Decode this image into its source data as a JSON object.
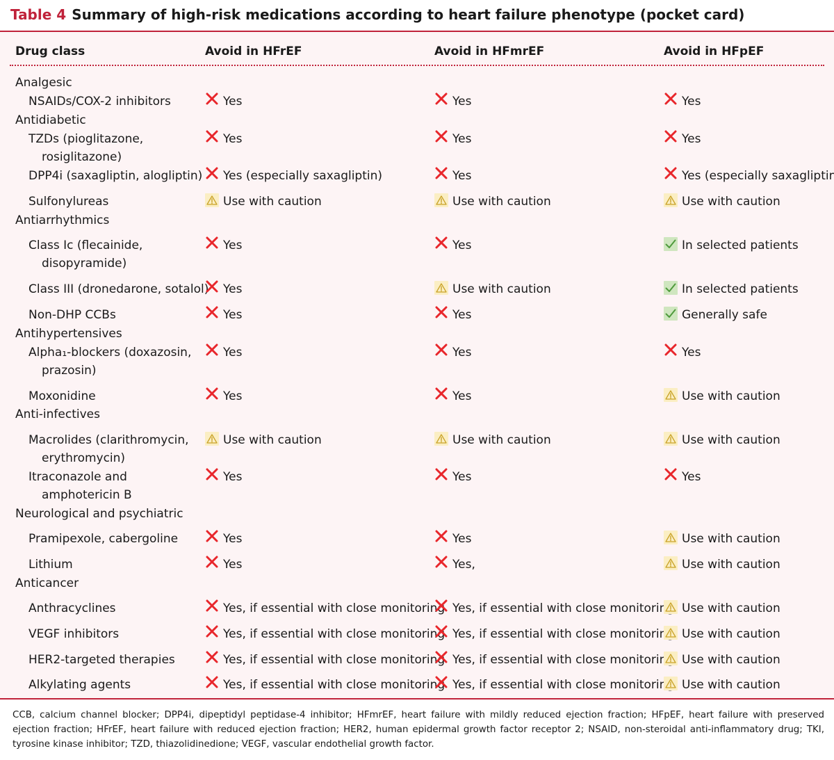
{
  "title": {
    "label": "Table 4",
    "text": "Summary of high-risk medications according to heart failure phenotype (pocket card)"
  },
  "header": {
    "drug_class": "Drug class",
    "hfref": "Avoid in HFrEF",
    "hfmref": "Avoid in HFmrEF",
    "hfpef": "Avoid in HFpEF"
  },
  "rows": [
    {
      "type": "category",
      "label": "Analgesic"
    },
    {
      "type": "drug",
      "lines": [
        "NSAIDs/COX-2 inhibitors"
      ],
      "hfref": {
        "icon": "red-x-icon",
        "text": "Yes"
      },
      "hfmref": {
        "icon": "red-x-icon",
        "text": "Yes"
      },
      "hfpef": {
        "icon": "red-x-icon",
        "text": "Yes"
      }
    },
    {
      "type": "category",
      "label": "Antidiabetic"
    },
    {
      "type": "drug",
      "lines": [
        "TZDs (pioglitazone,",
        "rosiglitazone)"
      ],
      "hfref": {
        "icon": "red-x-icon",
        "text": "Yes"
      },
      "hfmref": {
        "icon": "red-x-icon",
        "text": "Yes"
      },
      "hfpef": {
        "icon": "red-x-icon",
        "text": "Yes"
      }
    },
    {
      "type": "drug",
      "lines": [
        "DPP4i (saxagliptin, alogliptin)"
      ],
      "hfref": {
        "icon": "red-x-icon",
        "text": "Yes (especially saxagliptin)"
      },
      "hfmref": {
        "icon": "red-x-icon",
        "text": "Yes"
      },
      "hfpef": {
        "icon": "red-x-icon",
        "text": "Yes (especially saxagliptin)"
      }
    },
    {
      "type": "drug",
      "lines": [
        "Sulfonylureas"
      ],
      "hfref": {
        "icon": "warning-icon",
        "text": "Use with caution"
      },
      "hfmref": {
        "icon": "warning-icon",
        "text": "Use with caution"
      },
      "hfpef": {
        "icon": "warning-icon",
        "text": "Use with caution"
      }
    },
    {
      "type": "category",
      "label": "Antiarrhythmics"
    },
    {
      "type": "drug",
      "lines": [
        "Class Ic (flecainide,",
        "disopyramide)"
      ],
      "hfref": {
        "icon": "red-x-icon",
        "text": "Yes"
      },
      "hfmref": {
        "icon": "red-x-icon",
        "text": "Yes"
      },
      "hfpef": {
        "icon": "green-check-icon",
        "text": "In selected patients"
      }
    },
    {
      "type": "drug",
      "lines": [
        "Class III (dronedarone, sotalol)"
      ],
      "hfref": {
        "icon": "red-x-icon",
        "text": "Yes"
      },
      "hfmref": {
        "icon": "warning-icon",
        "text": "Use with caution"
      },
      "hfpef": {
        "icon": "green-check-icon",
        "text": "In selected patients"
      }
    },
    {
      "type": "drug",
      "lines": [
        "Non-DHP CCBs"
      ],
      "hfref": {
        "icon": "red-x-icon",
        "text": "Yes"
      },
      "hfmref": {
        "icon": "red-x-icon",
        "text": "Yes"
      },
      "hfpef": {
        "icon": "green-check-icon",
        "text": "Generally safe"
      }
    },
    {
      "type": "category",
      "label": "Antihypertensives"
    },
    {
      "type": "drug",
      "lines": [
        "Alpha₁-blockers (doxazosin,",
        "prazosin)"
      ],
      "hfref": {
        "icon": "red-x-icon",
        "text": "Yes"
      },
      "hfmref": {
        "icon": "red-x-icon",
        "text": "Yes"
      },
      "hfpef": {
        "icon": "red-x-icon",
        "text": "Yes"
      }
    },
    {
      "type": "drug",
      "lines": [
        "Moxonidine"
      ],
      "hfref": {
        "icon": "red-x-icon",
        "text": "Yes"
      },
      "hfmref": {
        "icon": "red-x-icon",
        "text": "Yes"
      },
      "hfpef": {
        "icon": "warning-icon",
        "text": "Use with caution"
      }
    },
    {
      "type": "category",
      "label": "Anti-infectives"
    },
    {
      "type": "drug",
      "lines": [
        "Macrolides (clarithromycin,",
        "erythromycin)"
      ],
      "hfref": {
        "icon": "warning-icon",
        "text": "Use with caution"
      },
      "hfmref": {
        "icon": "warning-icon",
        "text": "Use with caution"
      },
      "hfpef": {
        "icon": "warning-icon",
        "text": "Use with caution"
      }
    },
    {
      "type": "drug",
      "lines": [
        "Itraconazole and",
        "amphotericin B"
      ],
      "hfref": {
        "icon": "red-x-icon",
        "text": "Yes"
      },
      "hfmref": {
        "icon": "red-x-icon",
        "text": "Yes"
      },
      "hfpef": {
        "icon": "red-x-icon",
        "text": "Yes"
      }
    },
    {
      "type": "category",
      "label": "Neurological and psychiatric"
    },
    {
      "type": "drug",
      "lines": [
        "Pramipexole, cabergoline"
      ],
      "hfref": {
        "icon": "red-x-icon",
        "text": "Yes"
      },
      "hfmref": {
        "icon": "red-x-icon",
        "text": "Yes"
      },
      "hfpef": {
        "icon": "warning-icon",
        "text": "Use with caution"
      }
    },
    {
      "type": "drug",
      "lines": [
        "Lithium"
      ],
      "hfref": {
        "icon": "red-x-icon",
        "text": "Yes"
      },
      "hfmref": {
        "icon": "red-x-icon",
        "text": "Yes,"
      },
      "hfpef": {
        "icon": "warning-icon",
        "text": "Use with caution"
      }
    },
    {
      "type": "category",
      "label": "Anticancer"
    },
    {
      "type": "drug",
      "lines": [
        "Anthracyclines"
      ],
      "hfref": {
        "icon": "red-x-icon",
        "text": "Yes, if essential with close monitoring"
      },
      "hfmref": {
        "icon": "red-x-icon",
        "text": "Yes, if essential with close monitoring"
      },
      "hfpef": {
        "icon": "warning-icon",
        "text": "Use with caution"
      }
    },
    {
      "type": "drug",
      "lines": [
        "VEGF inhibitors"
      ],
      "hfref": {
        "icon": "red-x-icon",
        "text": "Yes, if essential with close monitoring"
      },
      "hfmref": {
        "icon": "red-x-icon",
        "text": "Yes, if essential with close monitoring"
      },
      "hfpef": {
        "icon": "warning-icon",
        "text": "Use with caution"
      }
    },
    {
      "type": "drug",
      "lines": [
        "HER2-targeted therapies"
      ],
      "hfref": {
        "icon": "red-x-icon",
        "text": "Yes, if essential with close monitoring"
      },
      "hfmref": {
        "icon": "red-x-icon",
        "text": "Yes, if essential with close monitoring"
      },
      "hfpef": {
        "icon": "warning-icon",
        "text": "Use with caution"
      }
    },
    {
      "type": "drug",
      "lines": [
        "Alkylating agents"
      ],
      "hfref": {
        "icon": "red-x-icon",
        "text": "Yes, if essential with close monitoring"
      },
      "hfmref": {
        "icon": "red-x-icon",
        "text": "Yes, if essential with close monitoring"
      },
      "hfpef": {
        "icon": "warning-icon",
        "text": "Use with caution"
      }
    }
  ],
  "footnote": "CCB, calcium channel blocker; DPP4i, dipeptidyl peptidase-4 inhibitor; HFmrEF, heart failure with mildly reduced ejection fraction; HFpEF, heart failure with preserved ejection fraction; HFrEF, heart failure with reduced ejection fraction; HER2, human epidermal growth factor receptor 2; NSAID, non-steroidal anti-inflammatory drug; TKI, tyrosine kinase inhibitor; TZD, thiazolidinedione; VEGF, vascular endothelial growth factor.",
  "colors": {
    "accent": "#c0223a",
    "panel": "#fdf4f5",
    "x_red": "#e8262b",
    "warn_bg": "#fbeec3",
    "warn_stroke": "#c9a227",
    "check_bg": "#cfe6bf",
    "check_stroke": "#4f9a3c"
  }
}
